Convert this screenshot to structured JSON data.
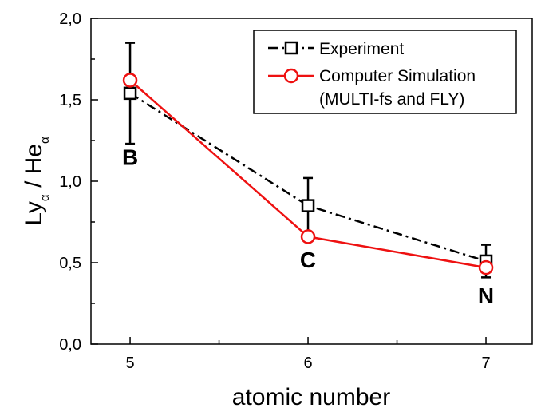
{
  "chart_data": {
    "type": "line",
    "title": "",
    "xlabel": "atomic number",
    "ylabel": {
      "part1_main": "Ly",
      "part1_sub": "α",
      "separator": " / ",
      "part2_main": "He",
      "part2_sub": "α"
    },
    "xlim": [
      4.78,
      7.26
    ],
    "ylim": [
      0.0,
      2.0
    ],
    "x_ticks": [
      5,
      6,
      7
    ],
    "x_tick_labels": [
      "5",
      "6",
      "7"
    ],
    "y_ticks": [
      0.0,
      0.5,
      1.0,
      1.5,
      2.0
    ],
    "y_tick_labels": [
      "0,0",
      "0,5",
      "1,0",
      "1,5",
      "2,0"
    ],
    "series": [
      {
        "name": "Experiment",
        "x": [
          5,
          6,
          7
        ],
        "values": [
          1.54,
          0.85,
          0.51
        ],
        "error": [
          0.31,
          0.17,
          0.1
        ],
        "color": "#000000",
        "line_style": "dash-dot",
        "marker": "open-square"
      },
      {
        "name": "Computer Simulation",
        "x": [
          5,
          6,
          7
        ],
        "values": [
          1.62,
          0.66,
          0.47
        ],
        "color": "#ee1111",
        "line_style": "solid",
        "marker": "open-circle"
      }
    ],
    "legend": {
      "placement": "top-right",
      "entries": [
        "Experiment",
        "Computer Simulation",
        "(MULTI-fs and FLY)"
      ]
    },
    "annotations": [
      {
        "text": "B",
        "x": 5,
        "y": 1.1
      },
      {
        "text": "C",
        "x": 6,
        "y": 0.47
      },
      {
        "text": "N",
        "x": 7,
        "y": 0.25
      }
    ],
    "grid": false
  }
}
